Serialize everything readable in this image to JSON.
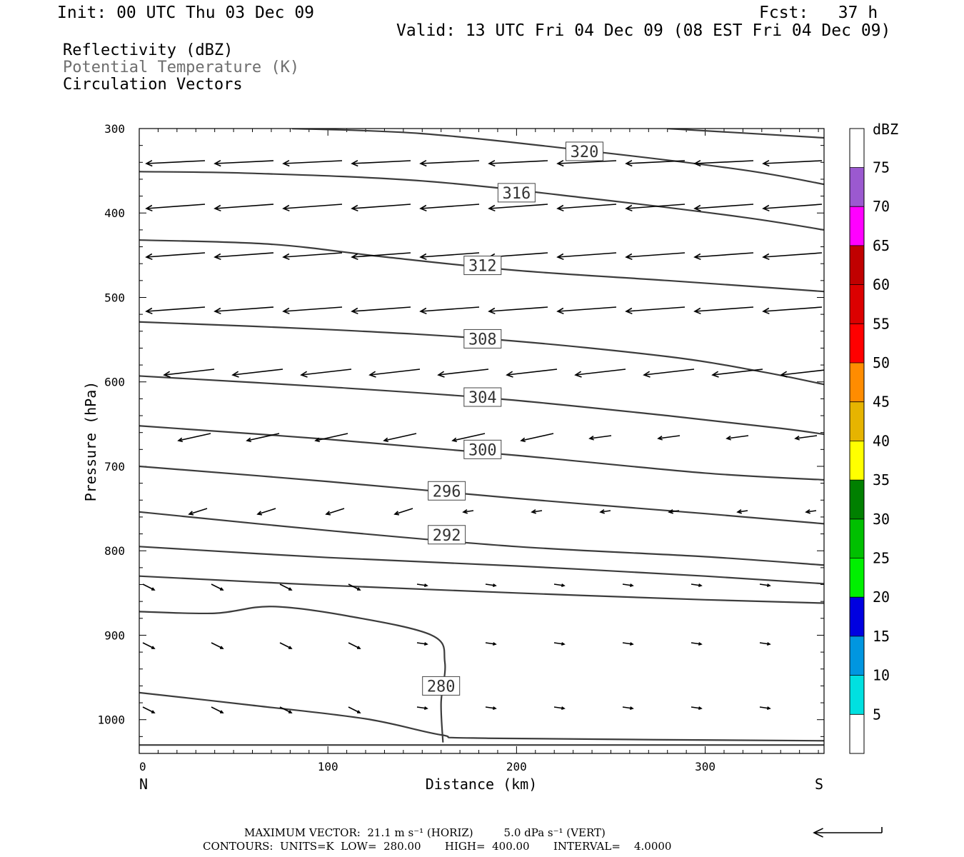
{
  "header": {
    "init": "Init: 00 UTC Thu 03 Dec 09",
    "fcst": "Fcst:   37 h",
    "valid": "Valid: 13 UTC Fri 04 Dec 09 (08 EST Fri 04 Dec 09)"
  },
  "fields": {
    "reflectivity": "Reflectivity (dBZ)",
    "theta": "Potential Temperature (K)",
    "vectors": "Circulation Vectors"
  },
  "footer": {
    "max_vector": "MAXIMUM VECTOR:  21.1 m s⁻¹ (HORIZ)         5.0 dPa s⁻¹ (VERT)",
    "contours": "CONTOURS:  UNITS=K  LOW=  280.00       HIGH=  400.00       INTERVAL=    4.0000"
  },
  "chart_data": {
    "type": "cross-section",
    "xlabel": "Distance (km)",
    "ylabel": "Pressure (hPa)",
    "xlim": [
      0,
      363
    ],
    "ylim": [
      1040,
      300
    ],
    "x_ticks": [
      0,
      100,
      200,
      300
    ],
    "y_ticks": [
      300,
      400,
      500,
      600,
      700,
      800,
      900,
      1000
    ],
    "x_end_labels": {
      "left": "N",
      "right": "S"
    },
    "colorbar": {
      "title": "dBZ",
      "levels": [
        5,
        10,
        15,
        20,
        25,
        30,
        35,
        40,
        45,
        50,
        55,
        60,
        65,
        70,
        75
      ],
      "colors": [
        "#00e0e0",
        "#0096e0",
        "#0000e0",
        "#00f000",
        "#00c000",
        "#008000",
        "#ffff00",
        "#e6b400",
        "#ff8c00",
        "#ff0000",
        "#dc0000",
        "#c00000",
        "#ff00ff",
        "#9b59d0"
      ]
    },
    "theta_contours": [
      {
        "label": "",
        "points": [
          [
            0,
            1030
          ],
          [
            363,
            1030
          ]
        ]
      },
      {
        "label": "320",
        "label_at": [
          236,
          327
        ],
        "points": [
          [
            81,
            300
          ],
          [
            150,
            306
          ],
          [
            240,
            327
          ],
          [
            320,
            349
          ],
          [
            363,
            366
          ]
        ]
      },
      {
        "label": "",
        "points": [
          [
            280,
            300
          ],
          [
            363,
            311
          ]
        ]
      },
      {
        "label": "316",
        "label_at": [
          200,
          376
        ],
        "points": [
          [
            0,
            351
          ],
          [
            60,
            353
          ],
          [
            150,
            362
          ],
          [
            240,
            383
          ],
          [
            320,
            405
          ],
          [
            363,
            420
          ]
        ]
      },
      {
        "label": "312",
        "label_at": [
          182,
          462
        ],
        "points": [
          [
            0,
            432
          ],
          [
            70,
            437
          ],
          [
            130,
            452
          ],
          [
            200,
            468
          ],
          [
            280,
            480
          ],
          [
            363,
            493
          ]
        ]
      },
      {
        "label": "308",
        "label_at": [
          182,
          549
        ],
        "points": [
          [
            0,
            529
          ],
          [
            100,
            538
          ],
          [
            190,
            550
          ],
          [
            280,
            570
          ],
          [
            330,
            588
          ],
          [
            363,
            603
          ]
        ]
      },
      {
        "label": "304",
        "label_at": [
          182,
          618
        ],
        "points": [
          [
            0,
            593
          ],
          [
            100,
            606
          ],
          [
            190,
            620
          ],
          [
            280,
            640
          ],
          [
            340,
            655
          ],
          [
            363,
            662
          ]
        ]
      },
      {
        "label": "300",
        "label_at": [
          182,
          680
        ],
        "points": [
          [
            0,
            652
          ],
          [
            100,
            668
          ],
          [
            200,
            687
          ],
          [
            300,
            708
          ],
          [
            363,
            716
          ]
        ]
      },
      {
        "label": "296",
        "label_at": [
          163,
          729
        ],
        "points": [
          [
            0,
            700
          ],
          [
            100,
            718
          ],
          [
            200,
            738
          ],
          [
            300,
            756
          ],
          [
            363,
            768
          ]
        ]
      },
      {
        "label": "292",
        "label_at": [
          163,
          781
        ],
        "points": [
          [
            0,
            754
          ],
          [
            100,
            776
          ],
          [
            200,
            795
          ],
          [
            300,
            807
          ],
          [
            363,
            817
          ]
        ]
      },
      {
        "label": "",
        "points": [
          [
            0,
            795
          ],
          [
            100,
            808
          ],
          [
            200,
            818
          ],
          [
            300,
            830
          ],
          [
            363,
            839
          ]
        ]
      },
      {
        "label": "",
        "points": [
          [
            0,
            830
          ],
          [
            100,
            841
          ],
          [
            200,
            850
          ],
          [
            300,
            858
          ],
          [
            363,
            862
          ]
        ]
      },
      {
        "label": "280",
        "label_at": [
          160,
          960
        ],
        "points": [
          [
            0,
            872
          ],
          [
            40,
            874
          ],
          [
            70,
            866
          ],
          [
            110,
            877
          ],
          [
            155,
            900
          ],
          [
            162,
            932
          ],
          [
            160,
            980
          ],
          [
            161,
            1027
          ]
        ]
      },
      {
        "label": "",
        "points": [
          [
            0,
            968
          ],
          [
            60,
            983
          ],
          [
            120,
            999
          ],
          [
            160,
            1018
          ],
          [
            185,
            1022
          ],
          [
            363,
            1025
          ]
        ]
      }
    ]
  }
}
